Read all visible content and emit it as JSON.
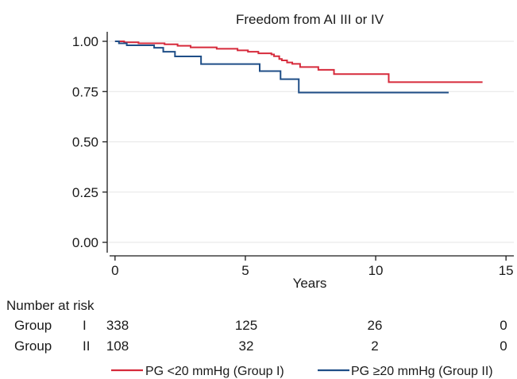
{
  "chart_data": {
    "type": "line",
    "step": true,
    "title": "Freedom from AI III or IV",
    "xlabel": "Years",
    "ylabel": "",
    "xlim": [
      -0.3,
      15.3
    ],
    "ylim": [
      0,
      1
    ],
    "x_ticks": [
      0,
      5,
      10,
      15
    ],
    "x_tick_labels": [
      "0",
      "5",
      "10",
      "15"
    ],
    "y_ticks": [
      0,
      0.25,
      0.5,
      0.75,
      1.0
    ],
    "y_tick_labels": [
      "0.00",
      "0.25",
      "0.50",
      "0.75",
      "1.00"
    ],
    "grid": true,
    "legend_position": "bottom",
    "series": [
      {
        "name": "PG <20 mmHg (Group I)",
        "color": "#d62a3b",
        "x": [
          0,
          0.35,
          0.9,
          1.9,
          2.4,
          2.9,
          3.9,
          4.7,
          5.1,
          5.5,
          6.0,
          6.1,
          6.3,
          6.4,
          6.6,
          6.8,
          7.1,
          7.8,
          8.4,
          10.5,
          14.1
        ],
        "y": [
          1.0,
          0.995,
          0.99,
          0.985,
          0.978,
          0.97,
          0.963,
          0.955,
          0.948,
          0.94,
          0.935,
          0.926,
          0.912,
          0.905,
          0.895,
          0.888,
          0.872,
          0.858,
          0.837,
          0.797,
          0.797
        ]
      },
      {
        "name": "PG ≥20 mmHg (Group II)",
        "color": "#1f4e87",
        "x": [
          0,
          0.15,
          0.45,
          1.5,
          1.85,
          2.3,
          3.3,
          4.85,
          5.55,
          6.35,
          7.05,
          12.8
        ],
        "y": [
          1.0,
          0.99,
          0.98,
          0.968,
          0.948,
          0.925,
          0.887,
          0.887,
          0.852,
          0.812,
          0.745,
          0.745
        ]
      }
    ]
  },
  "risk_table": {
    "header": "Number at risk",
    "rows": [
      {
        "group_word": "Group",
        "group_numeral": "I",
        "counts": [
          "338",
          "125",
          "26",
          "0"
        ]
      },
      {
        "group_word": "Group",
        "group_numeral": "II",
        "counts": [
          "108",
          "32",
          "2",
          "0"
        ]
      }
    ]
  }
}
